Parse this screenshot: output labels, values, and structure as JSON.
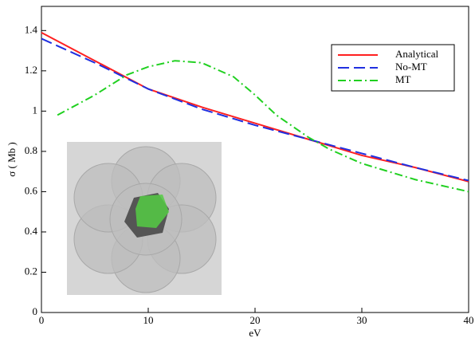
{
  "chart_data": {
    "type": "line",
    "xlabel": "eV",
    "ylabel": "σ ( Mb )",
    "xlim": [
      0,
      40
    ],
    "ylim": [
      0,
      1.52
    ],
    "xticks": [
      0,
      10,
      20,
      30,
      40
    ],
    "yticks": [
      0,
      0.2,
      0.4,
      0.6,
      0.8,
      1,
      1.2,
      1.4
    ],
    "legend": "upper right",
    "series": [
      {
        "name": "Analytical",
        "color": "#ff2020",
        "dash": "solid",
        "x": [
          0,
          5,
          10,
          15,
          20,
          25,
          30,
          35,
          40
        ],
        "values": [
          1.39,
          1.25,
          1.11,
          1.02,
          0.94,
          0.86,
          0.78,
          0.72,
          0.65
        ]
      },
      {
        "name": "No-MT",
        "color": "#2030e0",
        "dash": "dashed",
        "x": [
          0,
          5,
          10,
          15,
          20,
          25,
          30,
          35,
          40
        ],
        "values": [
          1.36,
          1.24,
          1.11,
          1.01,
          0.93,
          0.86,
          0.79,
          0.72,
          0.655
        ]
      },
      {
        "name": "MT",
        "color": "#20d020",
        "dash": "dashdot",
        "x": [
          1.5,
          5,
          8,
          10,
          12.5,
          15,
          18,
          20,
          22,
          25,
          27,
          30,
          35,
          40
        ],
        "values": [
          0.98,
          1.08,
          1.18,
          1.22,
          1.25,
          1.24,
          1.17,
          1.08,
          0.98,
          0.87,
          0.81,
          0.74,
          0.66,
          0.6
        ]
      }
    ]
  }
}
